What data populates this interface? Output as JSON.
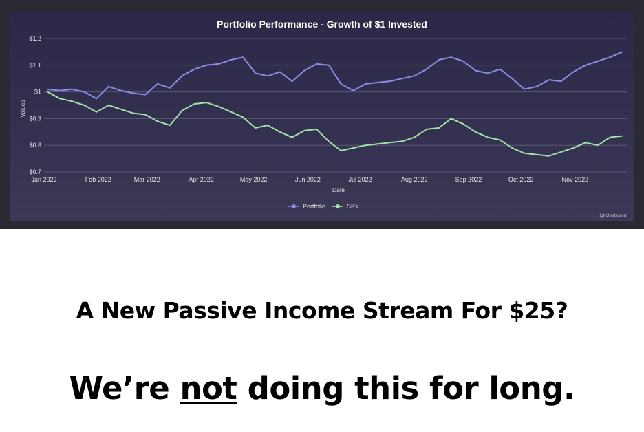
{
  "chart_data": {
    "type": "line",
    "title": "Portfolio Performance - Growth of $1 Invested",
    "xlabel": "Date",
    "ylabel": "Values",
    "x_ticks": [
      "Jan 2022",
      "Feb 2022",
      "Mar 2022",
      "Apr 2022",
      "May 2022",
      "Jun 2022",
      "Jul 2022",
      "Aug 2022",
      "Sep 2022",
      "Oct 2022",
      "Nov 2022"
    ],
    "y_ticks": [
      "$0.7",
      "$0.8",
      "$0.9",
      "$1",
      "$1.1",
      "$1.2"
    ],
    "ylim": [
      0.7,
      1.2
    ],
    "xlim": [
      "2022-01-01",
      "2022-12-01"
    ],
    "grid": "horizontal",
    "legend": "bottom-center",
    "credits": "Highcharts.com",
    "colors": {
      "Portfolio": "#8b8ee8",
      "SPY": "#a3e4a8"
    },
    "dates": [
      "2022-01-03",
      "2022-01-10",
      "2022-01-17",
      "2022-01-24",
      "2022-01-31",
      "2022-02-07",
      "2022-02-14",
      "2022-02-21",
      "2022-02-28",
      "2022-03-07",
      "2022-03-14",
      "2022-03-21",
      "2022-03-28",
      "2022-04-04",
      "2022-04-11",
      "2022-04-18",
      "2022-04-25",
      "2022-05-02",
      "2022-05-09",
      "2022-05-16",
      "2022-05-23",
      "2022-05-30",
      "2022-06-06",
      "2022-06-13",
      "2022-06-20",
      "2022-06-27",
      "2022-07-04",
      "2022-07-11",
      "2022-07-18",
      "2022-07-25",
      "2022-08-01",
      "2022-08-08",
      "2022-08-15",
      "2022-08-22",
      "2022-08-29",
      "2022-09-05",
      "2022-09-12",
      "2022-09-19",
      "2022-09-26",
      "2022-10-03",
      "2022-10-10",
      "2022-10-17",
      "2022-10-24",
      "2022-10-31",
      "2022-11-07",
      "2022-11-14",
      "2022-11-21",
      "2022-11-28"
    ],
    "series": [
      {
        "name": "Portfolio",
        "values": [
          1.01,
          1.005,
          1.01,
          1.0,
          0.975,
          1.02,
          1.005,
          0.995,
          0.99,
          1.03,
          1.015,
          1.06,
          1.085,
          1.1,
          1.105,
          1.12,
          1.13,
          1.07,
          1.06,
          1.075,
          1.04,
          1.08,
          1.105,
          1.1,
          1.03,
          1.005,
          1.03,
          1.035,
          1.04,
          1.05,
          1.06,
          1.085,
          1.12,
          1.13,
          1.115,
          1.08,
          1.07,
          1.085,
          1.05,
          1.01,
          1.02,
          1.045,
          1.04,
          1.075,
          1.1,
          1.115,
          1.13,
          1.15
        ]
      },
      {
        "name": "SPY",
        "values": [
          1.0,
          0.975,
          0.965,
          0.95,
          0.925,
          0.95,
          0.935,
          0.92,
          0.915,
          0.89,
          0.875,
          0.93,
          0.955,
          0.96,
          0.945,
          0.925,
          0.905,
          0.865,
          0.875,
          0.85,
          0.83,
          0.855,
          0.86,
          0.815,
          0.78,
          0.79,
          0.8,
          0.805,
          0.81,
          0.815,
          0.83,
          0.86,
          0.865,
          0.9,
          0.88,
          0.85,
          0.83,
          0.82,
          0.79,
          0.77,
          0.765,
          0.76,
          0.775,
          0.79,
          0.81,
          0.8,
          0.83,
          0.835
        ]
      }
    ]
  },
  "headline": {
    "line1": "A New Passive Income Stream For $25?",
    "line2_before": "We’re ",
    "line2_underlined": "not",
    "line2_after": " doing this for long."
  }
}
